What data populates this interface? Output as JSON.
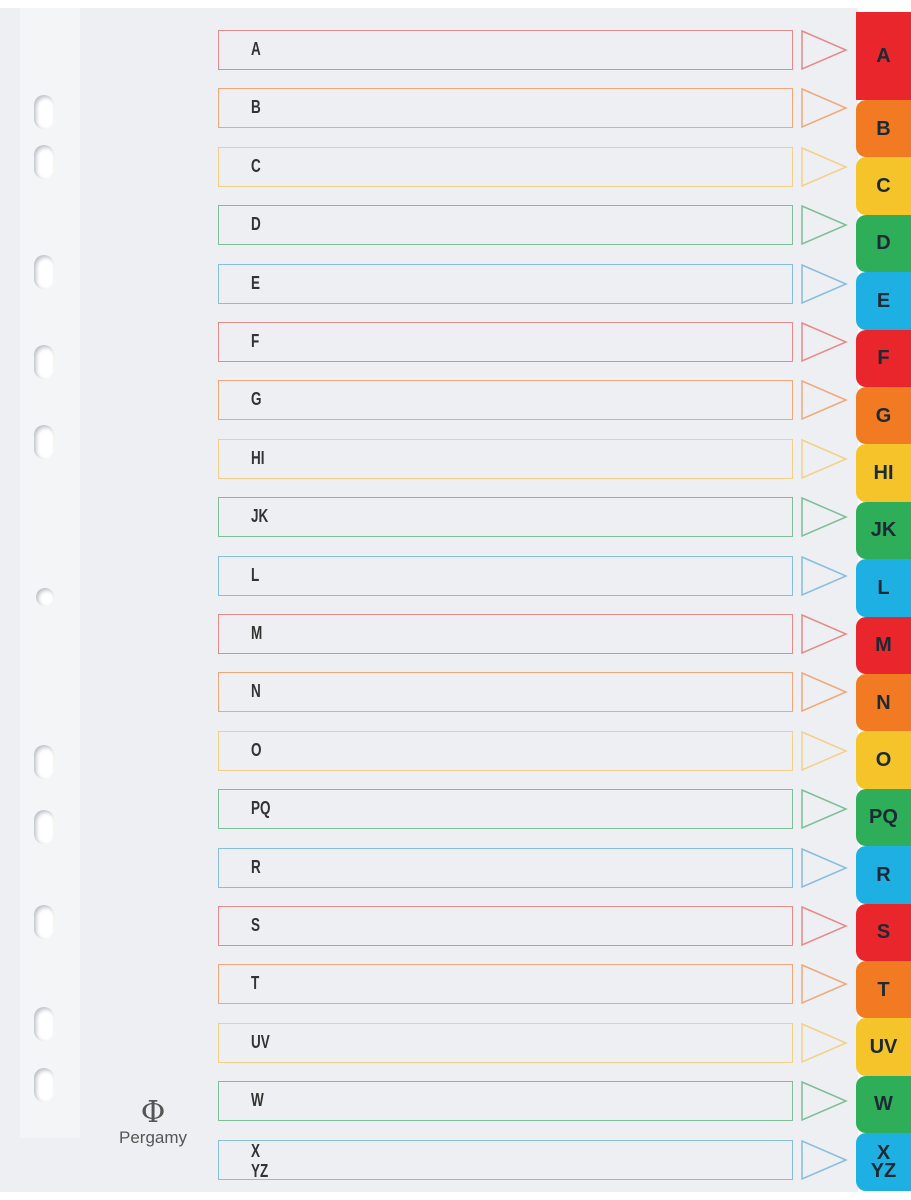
{
  "brand": "Pergamy",
  "colors": {
    "red": "#e8262b",
    "orange": "#f27a22",
    "yellow": "#f5c42b",
    "green": "#2fae5a",
    "blue": "#1fb0e3"
  },
  "sections": [
    "A",
    "B",
    "C",
    "D",
    "E",
    "F",
    "G",
    "HI",
    "JK",
    "L",
    "M",
    "N",
    "O",
    "PQ",
    "R",
    "S",
    "T",
    "UV",
    "W",
    "X\nYZ"
  ]
}
